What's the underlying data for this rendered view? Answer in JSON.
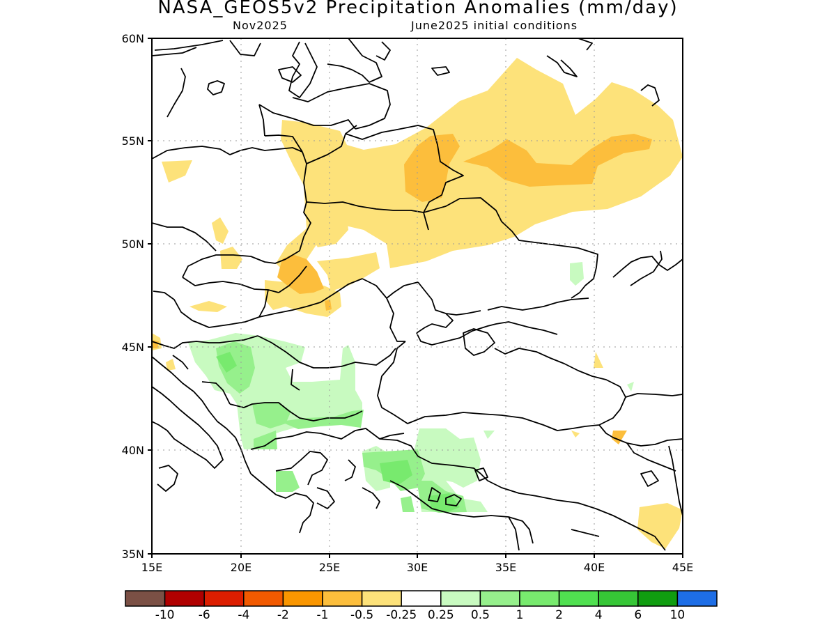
{
  "title": "NASA_GEOS5v2 Precipitation Anomalies (mm/day)",
  "subtitle_left": "Nov2025",
  "subtitle_right": "June2025 initial conditions",
  "lat_ticks": [
    "60N",
    "55N",
    "50N",
    "45N",
    "40N",
    "35N"
  ],
  "lon_ticks": [
    "15E",
    "20E",
    "25E",
    "30E",
    "35E",
    "40E",
    "45E"
  ],
  "colorbar": {
    "colors": [
      "#7b5045",
      "#b00000",
      "#dc1e00",
      "#f25a00",
      "#fa9600",
      "#fcbe3c",
      "#fde27a",
      "#ffffff",
      "#c8fac0",
      "#96f08c",
      "#78ea6e",
      "#50e050",
      "#36c636",
      "#109d10",
      "#1e6ee6"
    ],
    "labels": [
      "-10",
      "-6",
      "-4",
      "-2",
      "-1",
      "-0.5",
      "-0.25",
      "0.25",
      "0.5",
      "1",
      "2",
      "4",
      "6",
      "10"
    ]
  },
  "colors": {
    "neg_light": "#fde27a",
    "neg_medium": "#fcbe3c",
    "pos_light": "#c8fac0",
    "pos_medium": "#96f08c",
    "pos_strong": "#78ea6e"
  }
}
